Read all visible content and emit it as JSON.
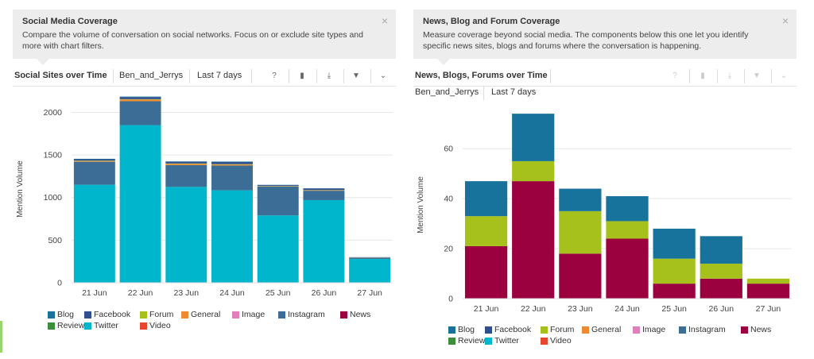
{
  "colors": {
    "Blog": "#17739c",
    "Facebook": "#2f4f8f",
    "Forum": "#a6c11c",
    "General": "#ef8a33",
    "Image": "#e07fb9",
    "Instagram": "#3b6d96",
    "News": "#9b003f",
    "Review": "#3b8f3b",
    "Twitter": "#00b6cc",
    "Video": "#e6462e"
  },
  "left": {
    "info": {
      "title": "Social Media Coverage",
      "description": "Compare the volume of conversation on social networks. Focus on or exclude site types and more with chart filters.",
      "close": "×"
    },
    "toolbar": {
      "title": "Social Sites over Time",
      "brand": "Ben_and_Jerrys",
      "range": "Last 7 days"
    },
    "legend": [
      [
        "Blog",
        "Facebook",
        "Forum",
        "General",
        "Image",
        "Instagram",
        "News"
      ],
      [
        "Review",
        "Twitter",
        "Video"
      ]
    ]
  },
  "right": {
    "info": {
      "title": "News, Blog and Forum Coverage",
      "description": "Measure coverage beyond social media. The components below this one let you identify specific news sites, blogs and forums where the conversation is happening.",
      "close": "×"
    },
    "toolbar": {
      "title": "News, Blogs, Forums over Time",
      "brand": "Ben_and_Jerrys",
      "range": "Last 7 days"
    },
    "legend": [
      [
        "Blog",
        "Facebook",
        "Forum",
        "General",
        "Image",
        "Instagram",
        "News"
      ],
      [
        "Review",
        "Twitter",
        "Video"
      ]
    ]
  },
  "chart_data": [
    {
      "type": "bar",
      "stacked": true,
      "title": "Social Sites over Time",
      "ylabel": "Mention Volume",
      "xlabel": "",
      "categories": [
        "21 Jun",
        "22 Jun",
        "23 Jun",
        "24 Jun",
        "25 Jun",
        "26 Jun",
        "27 Jun"
      ],
      "ylim": [
        0,
        2200
      ],
      "yticks": [
        0,
        500,
        1000,
        1500,
        2000
      ],
      "grid": true,
      "legend_position": "bottom",
      "series": [
        {
          "name": "Twitter",
          "values": [
            1150,
            1850,
            1125,
            1085,
            790,
            970,
            280
          ]
        },
        {
          "name": "Instagram",
          "values": [
            270,
            280,
            255,
            290,
            340,
            110,
            15
          ]
        },
        {
          "name": "General",
          "values": [
            8,
            20,
            15,
            12,
            3,
            5,
            2
          ]
        },
        {
          "name": "Forum",
          "values": [
            5,
            5,
            5,
            5,
            3,
            3,
            1
          ]
        },
        {
          "name": "Facebook",
          "values": [
            17,
            25,
            20,
            25,
            10,
            18,
            2
          ]
        },
        {
          "name": "Blog",
          "values": [
            5,
            5,
            5,
            5,
            3,
            3,
            0
          ]
        }
      ]
    },
    {
      "type": "bar",
      "stacked": true,
      "title": "News, Blogs, Forums over Time",
      "ylabel": "Mention Volume",
      "xlabel": "",
      "categories": [
        "21 Jun",
        "22 Jun",
        "23 Jun",
        "24 Jun",
        "25 Jun",
        "26 Jun",
        "27 Jun"
      ],
      "ylim": [
        0,
        75
      ],
      "yticks": [
        0,
        20,
        40,
        60
      ],
      "grid": true,
      "legend_position": "bottom",
      "series": [
        {
          "name": "News",
          "values": [
            21,
            47,
            18,
            24,
            6,
            8,
            6
          ]
        },
        {
          "name": "Forum",
          "values": [
            12,
            8,
            17,
            7,
            10,
            6,
            2
          ]
        },
        {
          "name": "Blog",
          "values": [
            14,
            19,
            9,
            10,
            12,
            11,
            0
          ]
        }
      ]
    }
  ]
}
